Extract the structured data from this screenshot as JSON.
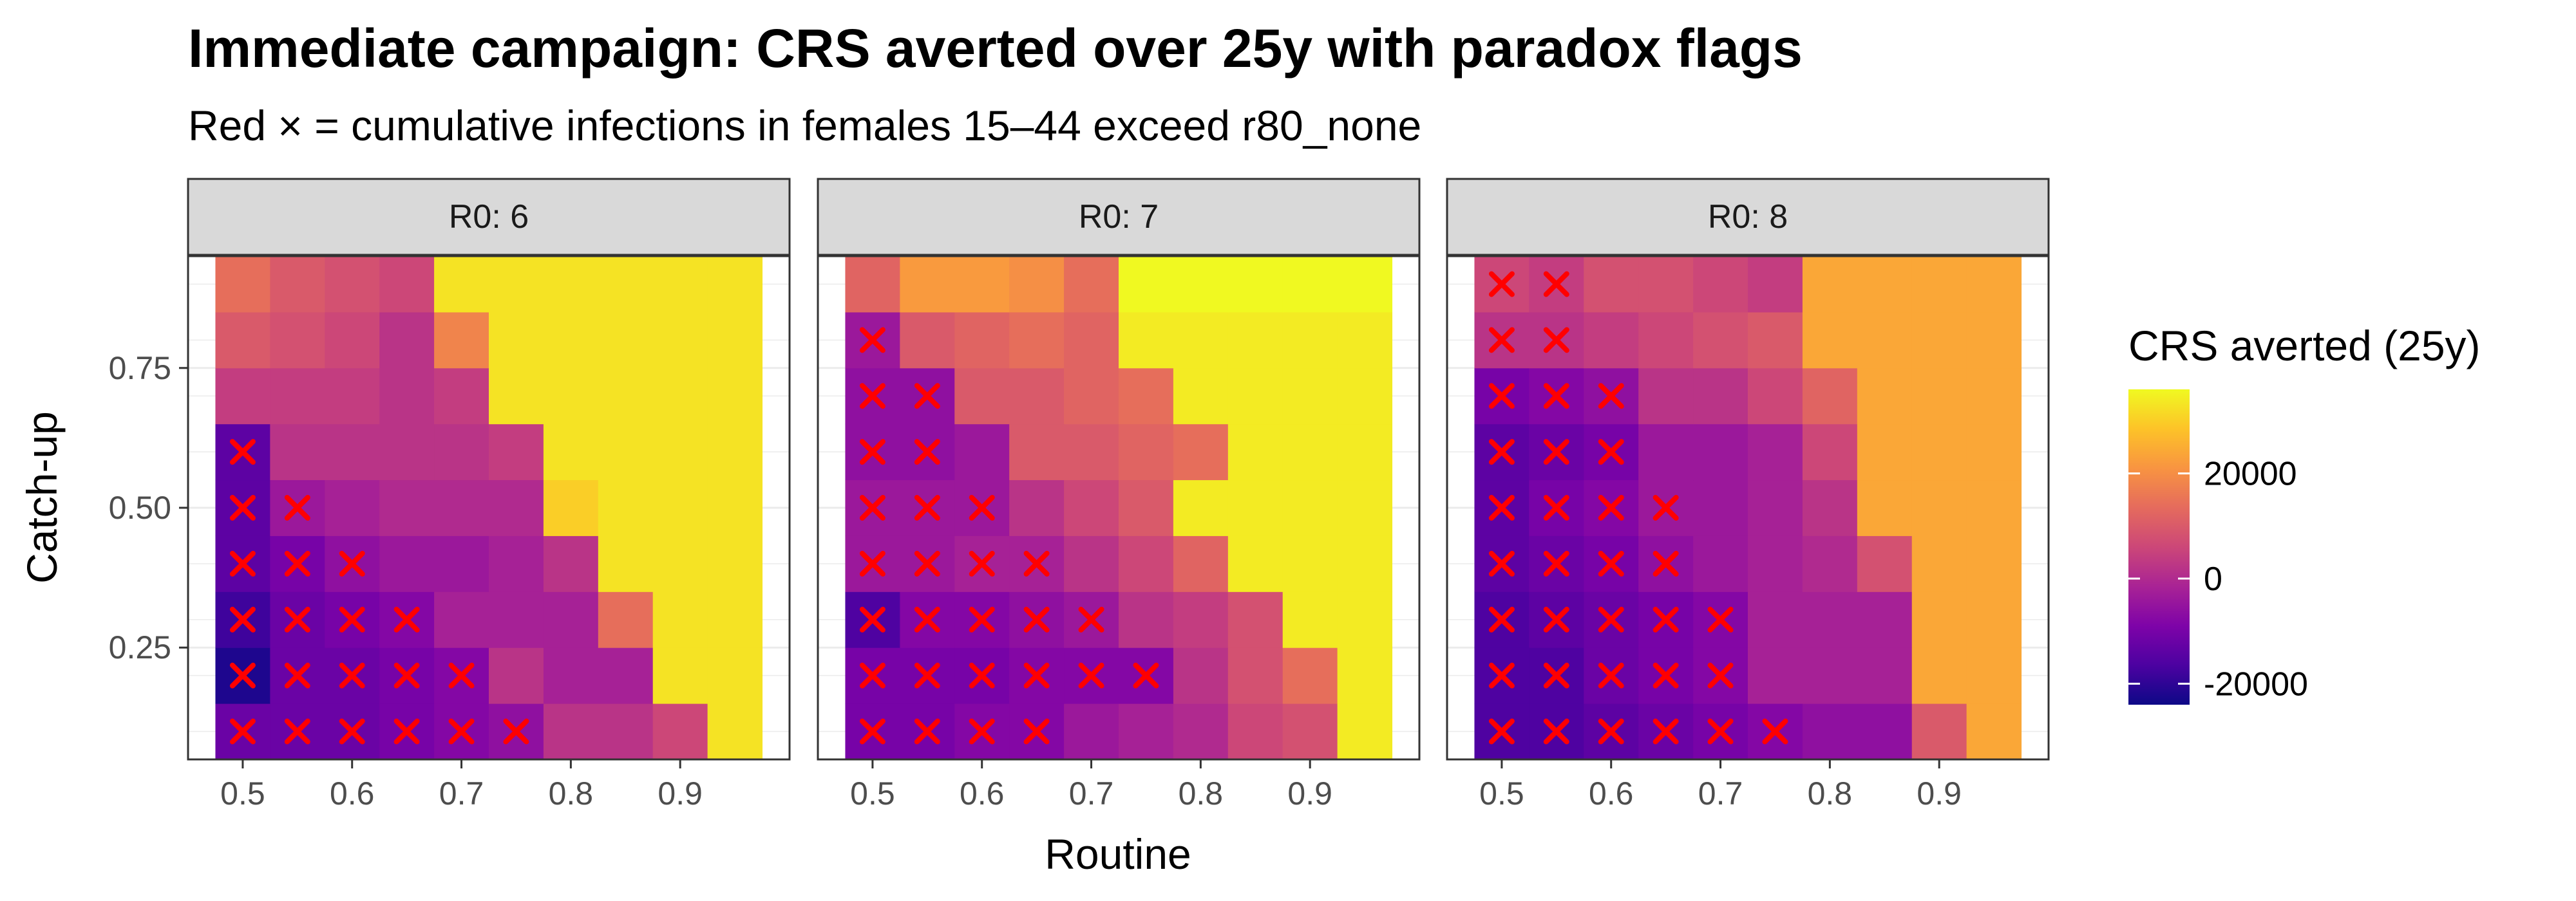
{
  "chart_data": {
    "type": "heatmap",
    "title": "Immediate campaign: CRS averted over 25y with paradox flags",
    "subtitle": "Red × = cumulative infections in females 15–44 exceed r80_none",
    "xlabel": "Routine",
    "ylabel": "Catch-up",
    "x_values": [
      0.5,
      0.55,
      0.6,
      0.65,
      0.7,
      0.75,
      0.8,
      0.85,
      0.9,
      0.95
    ],
    "y_values": [
      0.1,
      0.2,
      0.3,
      0.4,
      0.5,
      0.6,
      0.7,
      0.8,
      0.9
    ],
    "xlim": [
      0.45,
      1.0
    ],
    "ylim": [
      0.05,
      0.95
    ],
    "x_ticks": [
      "0.5",
      "0.6",
      "0.7",
      "0.8",
      "0.9"
    ],
    "y_ticks": [
      "0.75",
      "0.50",
      "0.25"
    ],
    "grid": true,
    "legend": {
      "title": "CRS averted (25y)",
      "position": "right",
      "ticks": [
        "20000",
        "0",
        "-20000"
      ],
      "tick_values": [
        20000,
        0,
        -20000
      ],
      "range": [
        -24000,
        36000
      ],
      "colormap": "plasma"
    },
    "marker": {
      "symbol": "×",
      "color": "#ff0000"
    },
    "panels": [
      {
        "label": "R0: 6",
        "values": [
          [
            -12000,
            -12000,
            -12000,
            -10000,
            -8000,
            -6000,
            2000,
            2000,
            6000,
            33000
          ],
          [
            -22000,
            -12000,
            -12000,
            -10000,
            -8000,
            2000,
            -2000,
            -2000,
            33000,
            33000
          ],
          [
            -18000,
            -12000,
            -10000,
            -8000,
            -2000,
            -2000,
            -2000,
            14000,
            33000,
            33000
          ],
          [
            -14000,
            -10000,
            -6000,
            -4000,
            -4000,
            -2000,
            2000,
            33000,
            33000,
            33000
          ],
          [
            -14000,
            -4000,
            -2000,
            0,
            0,
            0,
            30000,
            33000,
            33000,
            33000
          ],
          [
            -14000,
            2000,
            2000,
            2000,
            2000,
            4000,
            33000,
            33000,
            33000,
            33000
          ],
          [
            4000,
            4000,
            4000,
            2000,
            4000,
            33000,
            33000,
            33000,
            33000,
            33000
          ],
          [
            10000,
            8000,
            6000,
            2000,
            18000,
            33000,
            33000,
            33000,
            33000,
            33000
          ],
          [
            14000,
            10000,
            8000,
            6000,
            33000,
            33000,
            33000,
            33000,
            33000,
            33000
          ]
        ],
        "flags": [
          [
            true,
            true,
            true,
            true,
            true,
            true,
            false,
            false,
            false,
            false
          ],
          [
            true,
            true,
            true,
            true,
            true,
            false,
            false,
            false,
            false,
            false
          ],
          [
            true,
            true,
            true,
            true,
            false,
            false,
            false,
            false,
            false,
            false
          ],
          [
            true,
            true,
            true,
            false,
            false,
            false,
            false,
            false,
            false,
            false
          ],
          [
            true,
            true,
            false,
            false,
            false,
            false,
            false,
            false,
            false,
            false
          ],
          [
            true,
            false,
            false,
            false,
            false,
            false,
            false,
            false,
            false,
            false
          ],
          [
            false,
            false,
            false,
            false,
            false,
            false,
            false,
            false,
            false,
            false
          ],
          [
            false,
            false,
            false,
            false,
            false,
            false,
            false,
            false,
            false,
            false
          ],
          [
            false,
            false,
            false,
            false,
            false,
            false,
            false,
            false,
            false,
            false
          ]
        ]
      },
      {
        "label": "R0: 7",
        "values": [
          [
            -10000,
            -10000,
            -8000,
            -8000,
            -4000,
            -2000,
            0,
            6000,
            8000,
            34000
          ],
          [
            -10000,
            -10000,
            -10000,
            -8000,
            -8000,
            -8000,
            2000,
            8000,
            14000,
            34000
          ],
          [
            -16000,
            -8000,
            -8000,
            -6000,
            -4000,
            2000,
            4000,
            8000,
            34000,
            34000
          ],
          [
            -4000,
            -4000,
            -2000,
            -2000,
            2000,
            6000,
            12000,
            34000,
            34000,
            34000
          ],
          [
            -4000,
            -4000,
            -4000,
            2000,
            6000,
            10000,
            34000,
            34000,
            34000,
            34000
          ],
          [
            -6000,
            -6000,
            -4000,
            10000,
            10000,
            12000,
            14000,
            34000,
            34000,
            34000
          ],
          [
            -6000,
            -6000,
            10000,
            10000,
            12000,
            14000,
            34000,
            34000,
            34000,
            34000
          ],
          [
            -4000,
            10000,
            12000,
            14000,
            12000,
            34000,
            34000,
            34000,
            34000,
            34000
          ],
          [
            12000,
            22000,
            22000,
            20000,
            14000,
            36000,
            36000,
            36000,
            36000,
            36000
          ]
        ],
        "flags": [
          [
            true,
            true,
            true,
            true,
            false,
            false,
            false,
            false,
            false,
            false
          ],
          [
            true,
            true,
            true,
            true,
            true,
            true,
            false,
            false,
            false,
            false
          ],
          [
            true,
            true,
            true,
            true,
            true,
            false,
            false,
            false,
            false,
            false
          ],
          [
            true,
            true,
            true,
            true,
            false,
            false,
            false,
            false,
            false,
            false
          ],
          [
            true,
            true,
            true,
            false,
            false,
            false,
            false,
            false,
            false,
            false
          ],
          [
            true,
            true,
            false,
            false,
            false,
            false,
            false,
            false,
            false,
            false
          ],
          [
            true,
            true,
            false,
            false,
            false,
            false,
            false,
            false,
            false,
            false
          ],
          [
            true,
            false,
            false,
            false,
            false,
            false,
            false,
            false,
            false,
            false
          ],
          [
            false,
            false,
            false,
            false,
            false,
            false,
            false,
            false,
            false,
            false
          ]
        ]
      },
      {
        "label": "R0: 8",
        "values": [
          [
            -16000,
            -16000,
            -14000,
            -12000,
            -10000,
            -8000,
            -6000,
            -6000,
            10000,
            24000
          ],
          [
            -16000,
            -16000,
            -12000,
            -10000,
            -8000,
            -2000,
            -2000,
            -2000,
            24000,
            24000
          ],
          [
            -16000,
            -14000,
            -12000,
            -10000,
            -8000,
            -2000,
            -2000,
            -2000,
            24000,
            24000
          ],
          [
            -14000,
            -12000,
            -10000,
            -6000,
            -4000,
            -2000,
            0,
            8000,
            24000,
            24000
          ],
          [
            -14000,
            -10000,
            -8000,
            -4000,
            -4000,
            -2000,
            2000,
            24000,
            24000,
            24000
          ],
          [
            -14000,
            -12000,
            -10000,
            -4000,
            -4000,
            -2000,
            6000,
            24000,
            24000,
            24000
          ],
          [
            -10000,
            -8000,
            -6000,
            2000,
            2000,
            6000,
            12000,
            24000,
            24000,
            24000
          ],
          [
            2000,
            2000,
            4000,
            6000,
            8000,
            10000,
            24000,
            24000,
            24000,
            24000
          ],
          [
            6000,
            4000,
            8000,
            8000,
            6000,
            4000,
            24000,
            24000,
            24000,
            24000
          ]
        ],
        "flags": [
          [
            true,
            true,
            true,
            true,
            true,
            true,
            false,
            false,
            false,
            false
          ],
          [
            true,
            true,
            true,
            true,
            true,
            false,
            false,
            false,
            false,
            false
          ],
          [
            true,
            true,
            true,
            true,
            true,
            false,
            false,
            false,
            false,
            false
          ],
          [
            true,
            true,
            true,
            true,
            false,
            false,
            false,
            false,
            false,
            false
          ],
          [
            true,
            true,
            true,
            true,
            false,
            false,
            false,
            false,
            false,
            false
          ],
          [
            true,
            true,
            true,
            false,
            false,
            false,
            false,
            false,
            false,
            false
          ],
          [
            true,
            true,
            true,
            false,
            false,
            false,
            false,
            false,
            false,
            false
          ],
          [
            true,
            true,
            false,
            false,
            false,
            false,
            false,
            false,
            false,
            false
          ],
          [
            true,
            true,
            false,
            false,
            false,
            false,
            false,
            false,
            false,
            false
          ]
        ]
      }
    ]
  }
}
